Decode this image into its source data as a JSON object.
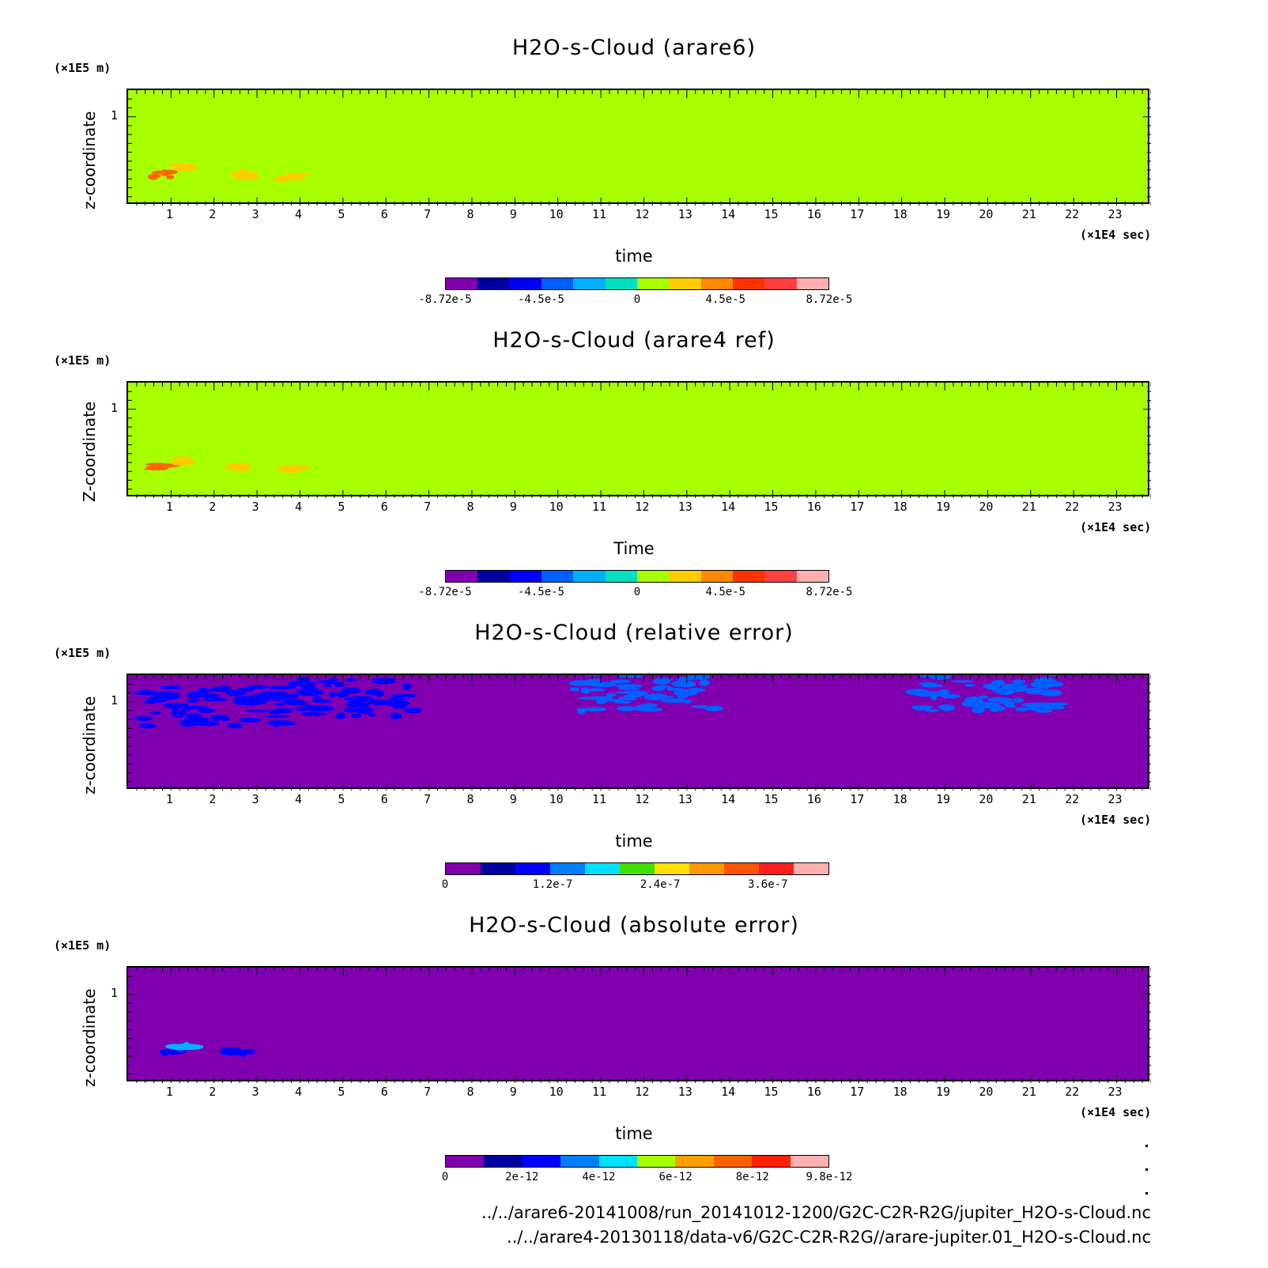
{
  "chart_data": [
    {
      "type": "heatmap",
      "title": "H2O-s-Cloud (arare6)",
      "ylabel": "z-coordinate",
      "yunit": "(×1E5 m)",
      "xlabel": "time",
      "xunit": "(×1E4 sec)",
      "xticks": [
        "1",
        "2",
        "3",
        "4",
        "5",
        "6",
        "7",
        "8",
        "9",
        "10",
        "11",
        "12",
        "13",
        "14",
        "15",
        "16",
        "17",
        "18",
        "19",
        "20",
        "21",
        "22",
        "23"
      ],
      "yticks": [
        "1"
      ],
      "xlim": [
        0,
        23.8
      ],
      "ylim": [
        0,
        1.3
      ],
      "background_color": "#a8ff00",
      "features": [
        {
          "x": 0.8,
          "y": 0.35,
          "color": "#ff6600"
        },
        {
          "x": 1.3,
          "y": 0.42,
          "color": "#ffcc00"
        },
        {
          "x": 2.6,
          "y": 0.35,
          "color": "#ffcc00"
        },
        {
          "x": 3.8,
          "y": 0.33,
          "color": "#ffcc00"
        }
      ],
      "colorbar": {
        "colors": [
          "#8000b0",
          "#0000a0",
          "#0000ff",
          "#0060ff",
          "#00b0ff",
          "#00e0c0",
          "#a8ff00",
          "#ffcc00",
          "#ff8800",
          "#ff3300",
          "#ff4040",
          "#ffb0b0"
        ],
        "labels": [
          "-8.72e-5",
          "-4.5e-5",
          "0",
          "4.5e-5",
          "8.72e-5"
        ]
      }
    },
    {
      "type": "heatmap",
      "title": "H2O-s-Cloud (arare4 ref)",
      "ylabel": "Z-coordinate",
      "yunit": "(×1E5 m)",
      "xlabel": "Time",
      "xunit": "(×1E4 sec)",
      "xticks": [
        "1",
        "2",
        "3",
        "4",
        "5",
        "6",
        "7",
        "8",
        "9",
        "10",
        "11",
        "12",
        "13",
        "14",
        "15",
        "16",
        "17",
        "18",
        "19",
        "20",
        "21",
        "22",
        "23"
      ],
      "yticks": [
        "1"
      ],
      "xlim": [
        0,
        23.8
      ],
      "ylim": [
        0,
        1.3
      ],
      "background_color": "#a8ff00",
      "features": [
        {
          "x": 0.8,
          "y": 0.35,
          "color": "#ff6600"
        },
        {
          "x": 1.3,
          "y": 0.42,
          "color": "#ffcc00"
        },
        {
          "x": 2.6,
          "y": 0.35,
          "color": "#ffcc00"
        },
        {
          "x": 3.8,
          "y": 0.33,
          "color": "#ffcc00"
        }
      ],
      "colorbar": {
        "colors": [
          "#8000b0",
          "#0000a0",
          "#0000ff",
          "#0060ff",
          "#00b0ff",
          "#00e0c0",
          "#a8ff00",
          "#ffcc00",
          "#ff8800",
          "#ff3300",
          "#ff4040",
          "#ffb0b0"
        ],
        "labels": [
          "-8.72e-5",
          "-4.5e-5",
          "0",
          "4.5e-5",
          "8.72e-5"
        ]
      }
    },
    {
      "type": "heatmap",
      "title": "H2O-s-Cloud (relative error)",
      "ylabel": "z-coordinate",
      "yunit": "(×1E5 m)",
      "xlabel": "time",
      "xunit": "(×1E4 sec)",
      "xticks": [
        "1",
        "2",
        "3",
        "4",
        "5",
        "6",
        "7",
        "8",
        "9",
        "10",
        "11",
        "12",
        "13",
        "14",
        "15",
        "16",
        "17",
        "18",
        "19",
        "20",
        "21",
        "22",
        "23"
      ],
      "yticks": [
        "1"
      ],
      "xlim": [
        0,
        23.8
      ],
      "ylim": [
        0,
        1.3
      ],
      "background_color": "#8000b0",
      "features": [
        {
          "x": 2.0,
          "y": 0.95,
          "color": "#0000ff"
        },
        {
          "x": 5.0,
          "y": 1.05,
          "color": "#0000ff"
        },
        {
          "x": 12.0,
          "y": 1.1,
          "color": "#0060ff"
        },
        {
          "x": 20.0,
          "y": 1.1,
          "color": "#0060ff"
        }
      ],
      "colorbar": {
        "colors": [
          "#8000b0",
          "#0000a0",
          "#0000ff",
          "#0080ff",
          "#00e0ff",
          "#40e000",
          "#ffe000",
          "#ff9900",
          "#ff5500",
          "#ff2020",
          "#ffb0b0"
        ],
        "labels": [
          "0",
          "1.2e-7",
          "2.4e-7",
          "3.6e-7"
        ]
      }
    },
    {
      "type": "heatmap",
      "title": "H2O-s-Cloud (absolute error)",
      "ylabel": "z-coordinate",
      "yunit": "(×1E5 m)",
      "xlabel": "time",
      "xunit": "(×1E4 sec)",
      "xticks": [
        "1",
        "2",
        "3",
        "4",
        "5",
        "6",
        "7",
        "8",
        "9",
        "10",
        "11",
        "12",
        "13",
        "14",
        "15",
        "16",
        "17",
        "18",
        "19",
        "20",
        "21",
        "22",
        "23"
      ],
      "yticks": [
        "1"
      ],
      "xlim": [
        0,
        23.8
      ],
      "ylim": [
        0,
        1.3
      ],
      "background_color": "#8000b0",
      "features": [
        {
          "x": 1.0,
          "y": 0.35,
          "color": "#0000ff"
        },
        {
          "x": 1.3,
          "y": 0.42,
          "color": "#00b0ff"
        },
        {
          "x": 2.6,
          "y": 0.35,
          "color": "#0000ff"
        }
      ],
      "colorbar": {
        "colors": [
          "#8000b0",
          "#0000a0",
          "#0000ff",
          "#0080ff",
          "#00e0ff",
          "#a8ff00",
          "#ffa000",
          "#ff6000",
          "#ff2000",
          "#ffb0b0"
        ],
        "labels": [
          "0",
          "2e-12",
          "4e-12",
          "6e-12",
          "8e-12",
          "9.8e-12"
        ]
      }
    }
  ],
  "footer": {
    "line1": "../../arare6-20141008/run_20141012-1200/G2C-C2R-R2G/jupiter_H2O-s-Cloud.nc",
    "line2": "../../arare4-20130118/data-v6/G2C-C2R-R2G//arare-jupiter.01_H2O-s-Cloud.nc"
  }
}
